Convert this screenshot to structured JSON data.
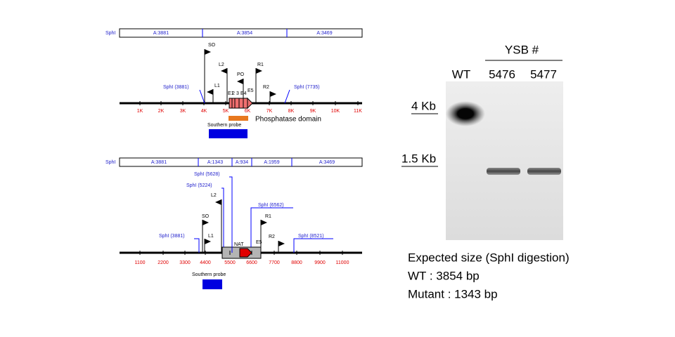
{
  "wt_map": {
    "enzyme": "SphI",
    "fragments": [
      "A:3881",
      "A:3854",
      "A:3469"
    ],
    "features": [
      "SO",
      "L2",
      "L1",
      "PO",
      "R1",
      "R2",
      "E1",
      "2",
      "3",
      "E4",
      "E5"
    ],
    "sites": [
      "SphI (3881)",
      "SphI (7735)"
    ],
    "axis_labels": [
      "1K",
      "2K",
      "3K",
      "4K",
      "5K",
      "6K",
      "7K",
      "8K",
      "9K",
      "10K",
      "11K"
    ],
    "probe": "Southern probe",
    "domain": "Phosphatase domain"
  },
  "mutant_map": {
    "enzyme": "SphI",
    "fragments": [
      "A:3881",
      "A:1343",
      "A:934",
      "A:1959",
      "A:3469"
    ],
    "features": [
      "L2",
      "SO",
      "L1",
      "R1",
      "R2",
      "E5",
      "NAT"
    ],
    "sites": [
      "SphI (5628)",
      "SphI (5224)",
      "SphI (6562)",
      "SphI (3881)",
      "SphI (8521)"
    ],
    "axis_labels": [
      "1100",
      "2200",
      "3300",
      "4400",
      "5500",
      "6600",
      "7700",
      "8800",
      "9900",
      "11000"
    ],
    "probe": "Southern probe"
  },
  "gel": {
    "group_label": "YSB #",
    "lanes": [
      "WT",
      "5476",
      "5477"
    ],
    "markers": [
      "4 Kb",
      "1.5 Kb"
    ]
  },
  "caption": [
    "Expected size (SphI digestion)",
    "WT : 3854 bp",
    "Mutant : 1343 bp"
  ]
}
